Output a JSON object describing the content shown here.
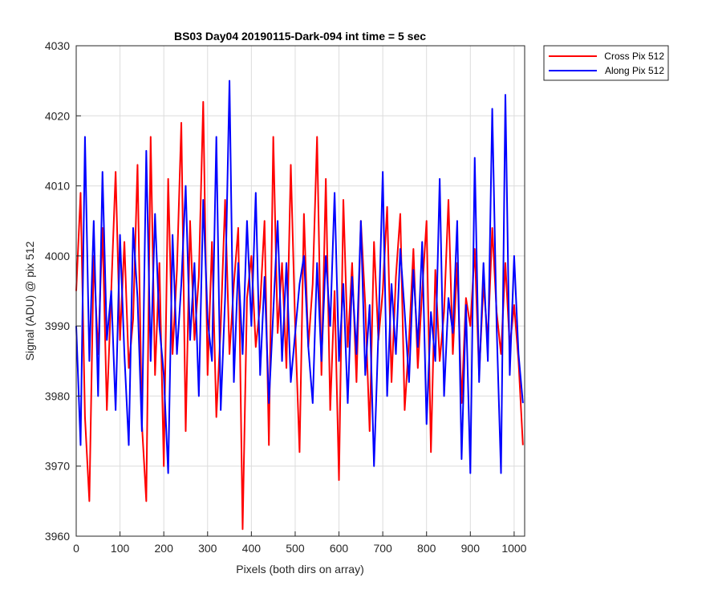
{
  "chart_data": {
    "type": "line",
    "title": "BS03 Day04 20190115-Dark-094 int time = 5 sec",
    "xlabel": "Pixels (both dirs on array)",
    "ylabel": "Signal (ADU) @ pix 512",
    "xlim": [
      0,
      1024
    ],
    "ylim": [
      3960,
      4030
    ],
    "xticks": [
      0,
      100,
      200,
      300,
      400,
      500,
      600,
      700,
      800,
      900,
      1000
    ],
    "yticks": [
      3960,
      3970,
      3980,
      3990,
      4000,
      4010,
      4020,
      4030
    ],
    "grid": true,
    "legend_position": "outside-top-right",
    "series": [
      {
        "name": "Cross Pix 512",
        "color": "#ff0000",
        "x": [
          0,
          10,
          20,
          30,
          40,
          50,
          60,
          70,
          80,
          90,
          100,
          110,
          120,
          130,
          140,
          150,
          160,
          170,
          180,
          190,
          200,
          210,
          220,
          230,
          240,
          250,
          260,
          270,
          280,
          290,
          300,
          310,
          320,
          330,
          340,
          350,
          360,
          370,
          380,
          390,
          400,
          410,
          420,
          430,
          440,
          450,
          460,
          470,
          480,
          490,
          500,
          510,
          520,
          530,
          540,
          550,
          560,
          570,
          580,
          590,
          600,
          610,
          620,
          630,
          640,
          650,
          660,
          670,
          680,
          690,
          700,
          710,
          720,
          730,
          740,
          750,
          760,
          770,
          780,
          790,
          800,
          810,
          820,
          830,
          840,
          850,
          860,
          870,
          880,
          890,
          900,
          910,
          920,
          930,
          940,
          950,
          960,
          970,
          980,
          990,
          1000,
          1010,
          1020
        ],
        "y": [
          3995,
          4009,
          3977,
          3965,
          4000,
          3986,
          4004,
          3978,
          3995,
          4012,
          3988,
          4002,
          3984,
          3991,
          4013,
          3976,
          3965,
          4017,
          3983,
          3999,
          3970,
          4011,
          3986,
          3998,
          4019,
          3975,
          4005,
          3988,
          3997,
          4022,
          3983,
          4002,
          3977,
          3990,
          4008,
          3986,
          3996,
          4004,
          3961,
          3994,
          4000,
          3987,
          3993,
          4005,
          3973,
          4017,
          3989,
          3999,
          3984,
          4013,
          3990,
          3972,
          4006,
          3987,
          3996,
          4017,
          3983,
          4011,
          3978,
          3995,
          3968,
          4008,
          3987,
          3999,
          3982,
          4005,
          3993,
          3975,
          4002,
          3988,
          3995,
          4007,
          3982,
          3997,
          4006,
          3978,
          3988,
          4001,
          3984,
          3995,
          4005,
          3972,
          3998,
          3985,
          3992,
          4008,
          3986,
          3999,
          3979,
          3994,
          3990,
          4001,
          3983,
          3996,
          3988,
          4004,
          3992,
          3986,
          3999,
          3987,
          3993,
          3985,
          3973
        ]
      },
      {
        "name": "Along Pix 512",
        "color": "#0000ff",
        "x": [
          0,
          10,
          20,
          30,
          40,
          50,
          60,
          70,
          80,
          90,
          100,
          110,
          120,
          130,
          140,
          150,
          160,
          170,
          180,
          190,
          200,
          210,
          220,
          230,
          240,
          250,
          260,
          270,
          280,
          290,
          300,
          310,
          320,
          330,
          340,
          350,
          360,
          370,
          380,
          390,
          400,
          410,
          420,
          430,
          440,
          450,
          460,
          470,
          480,
          490,
          500,
          510,
          520,
          530,
          540,
          550,
          560,
          570,
          580,
          590,
          600,
          610,
          620,
          630,
          640,
          650,
          660,
          670,
          680,
          690,
          700,
          710,
          720,
          730,
          740,
          750,
          760,
          770,
          780,
          790,
          800,
          810,
          820,
          830,
          840,
          850,
          860,
          870,
          880,
          890,
          900,
          910,
          920,
          930,
          940,
          950,
          960,
          970,
          980,
          990,
          1000,
          1010,
          1020
        ],
        "y": [
          3990,
          3973,
          4017,
          3985,
          4005,
          3980,
          4012,
          3988,
          3995,
          3978,
          4003,
          3986,
          3973,
          4004,
          3994,
          3975,
          4015,
          3985,
          4006,
          3990,
          3983,
          3969,
          4003,
          3986,
          3996,
          4010,
          3988,
          3999,
          3980,
          4008,
          3991,
          3985,
          4017,
          3978,
          3994,
          4025,
          3982,
          3999,
          3986,
          4005,
          3990,
          4009,
          3983,
          3997,
          3979,
          3992,
          4005,
          3985,
          3999,
          3982,
          3989,
          3996,
          4000,
          3987,
          3979,
          3999,
          3985,
          4000,
          3990,
          4009,
          3985,
          3996,
          3979,
          3997,
          3986,
          4005,
          3983,
          3993,
          3970,
          3989,
          4012,
          3980,
          3996,
          3986,
          4001,
          3992,
          3982,
          3998,
          3987,
          4002,
          3976,
          3992,
          3985,
          4011,
          3980,
          3994,
          3989,
          4005,
          3971,
          3993,
          3969,
          4014,
          3982,
          3999,
          3985,
          4021,
          3990,
          3969,
          4023,
          3983,
          4000,
          3986,
          3979
        ]
      }
    ]
  }
}
